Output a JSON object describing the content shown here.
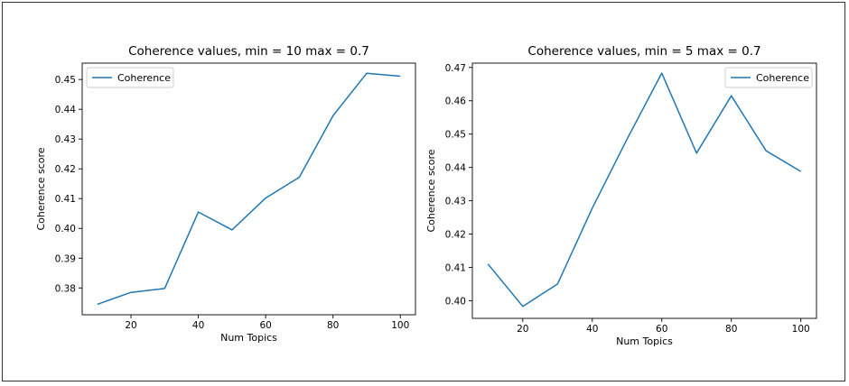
{
  "chart_data": [
    {
      "type": "line",
      "title": "Coherence values, min =  10 max = 0.7",
      "xlabel": "Num Topics",
      "ylabel": "Coherence score",
      "legend": "top-left",
      "xlim": [
        5.5,
        104.5
      ],
      "ylim": [
        0.371,
        0.4555
      ],
      "xticks": [
        20,
        40,
        60,
        80,
        100
      ],
      "yticks": [
        0.38,
        0.39,
        0.4,
        0.41,
        0.42,
        0.43,
        0.44,
        0.45
      ],
      "ytick_labels": [
        "0.38",
        "0.39",
        "0.40",
        "0.41",
        "0.42",
        "0.43",
        "0.44",
        "0.45"
      ],
      "series": [
        {
          "name": "Coherence",
          "color": "#1f77b4",
          "x": [
            10,
            20,
            30,
            40,
            50,
            60,
            70,
            80,
            90,
            100
          ],
          "y": [
            0.3745,
            0.3785,
            0.3798,
            0.4055,
            0.3995,
            0.4102,
            0.4172,
            0.4378,
            0.4521,
            0.4511
          ]
        }
      ]
    },
    {
      "type": "line",
      "title": "Coherence values, min =  5 max = 0.7",
      "xlabel": "Num Topics",
      "ylabel": "Coherence score",
      "legend": "top-right",
      "xlim": [
        5.5,
        104.5
      ],
      "ylim": [
        0.3947,
        0.4713
      ],
      "xticks": [
        20,
        40,
        60,
        80,
        100
      ],
      "yticks": [
        0.4,
        0.41,
        0.42,
        0.43,
        0.44,
        0.45,
        0.46,
        0.47
      ],
      "ytick_labels": [
        "0.40",
        "0.41",
        "0.42",
        "0.43",
        "0.44",
        "0.45",
        "0.46",
        "0.47"
      ],
      "series": [
        {
          "name": "Coherence",
          "color": "#1f77b4",
          "x": [
            10,
            20,
            30,
            40,
            50,
            60,
            70,
            80,
            90,
            100
          ],
          "y": [
            0.411,
            0.3983,
            0.405,
            0.4278,
            0.4485,
            0.4683,
            0.4443,
            0.4615,
            0.445,
            0.4388
          ]
        }
      ]
    }
  ]
}
